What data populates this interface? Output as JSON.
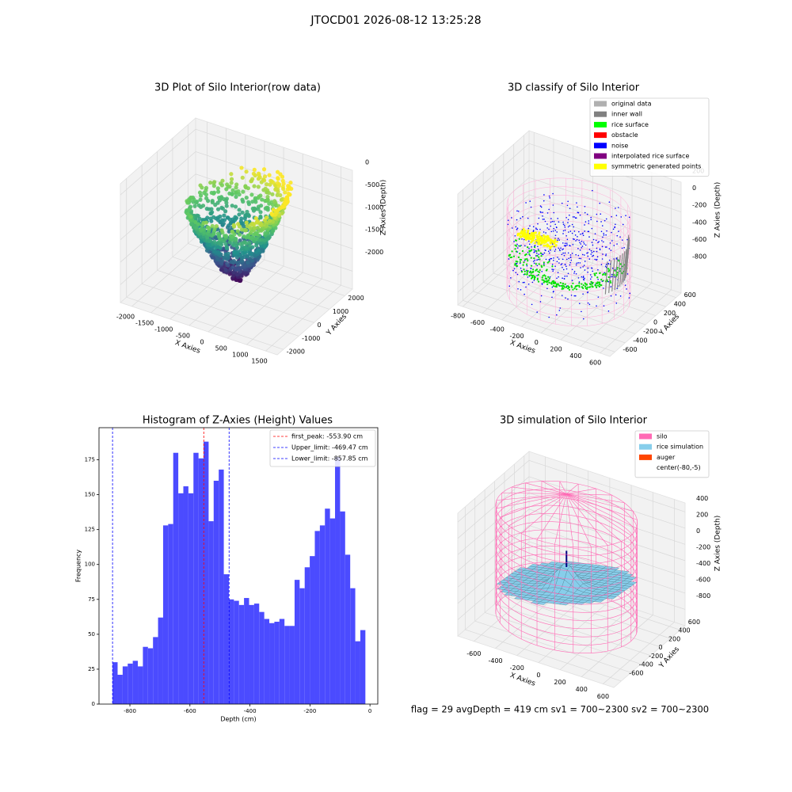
{
  "suptitle": "JTOCD01 2026-08-12 13:25:28",
  "footer": "flag = 29  avgDepth = 419 cm  sv1 = 700~2300  sv2 = 700~2300",
  "chart_data": [
    {
      "type": "scatter3d",
      "title": "3D Plot of Silo Interior(row data)",
      "x_label": "X Axies",
      "y_label": "Y Axies",
      "z_label": "Z Axies (Depth)",
      "xlim": [
        -2300,
        1800
      ],
      "ylim": [
        -2400,
        2500
      ],
      "zlim": [
        -2400,
        250
      ],
      "xticks": [
        -2000,
        -1500,
        -1000,
        -500,
        0,
        500,
        1000,
        1500
      ],
      "yticks": [
        -2000,
        -1000,
        0,
        1000,
        2000
      ],
      "zticks": [
        0,
        -500,
        -1000,
        -1500,
        -2000
      ]
    },
    {
      "type": "classify3d",
      "title": "3D classify of Silo Interior",
      "x_label": "X Axies",
      "y_label": "Y Axies",
      "z_label": "Z Axies (Depth)",
      "xlim": [
        -850,
        700
      ],
      "ylim": [
        -700,
        700
      ],
      "zlim": [
        -950,
        350
      ],
      "xticks": [
        -800,
        -600,
        -400,
        -200,
        0,
        200,
        400,
        600
      ],
      "yticks": [
        -600,
        -400,
        -200,
        0,
        200,
        400,
        600
      ],
      "zticks": [
        200,
        0,
        -200,
        -400,
        -600,
        -800
      ],
      "legend": [
        {
          "name": "original data",
          "color": "#b0b0b0"
        },
        {
          "name": "inner wall",
          "color": "#808080"
        },
        {
          "name": "rice surface",
          "color": "#00ff00"
        },
        {
          "name": "obstacle",
          "color": "#ff0000"
        },
        {
          "name": "noise",
          "color": "#0000ff"
        },
        {
          "name": "interpolated rice surface",
          "color": "#800080"
        },
        {
          "name": "symmetric generated points",
          "color": "#ffff00"
        }
      ]
    },
    {
      "type": "histogram",
      "title": "Histogram of Z-Axies (Height) Values",
      "x_label": "Depth (cm)",
      "y_label": "Frequency",
      "color": "#4b4bff",
      "bins": [
        -857.85,
        -841.0,
        -824.15,
        -807.3,
        -790.45,
        -773.6,
        -756.75,
        -739.9,
        -723.05,
        -706.2,
        -689.35,
        -672.5,
        -655.65,
        -638.8,
        -621.95,
        -605.1,
        -588.25,
        -571.4,
        -554.55,
        -537.7,
        -520.85,
        -504.0,
        -487.15,
        -470.3,
        -453.45,
        -436.6,
        -419.75,
        -402.9,
        -386.05,
        -369.2,
        -352.35,
        -335.5,
        -318.65,
        -301.8,
        -284.95,
        -268.1,
        -251.25,
        -234.4,
        -217.55,
        -200.7,
        -183.85,
        -167.0,
        -150.15,
        -133.3,
        -116.45,
        -99.6,
        -82.75,
        -65.9,
        -49.05,
        -32.2,
        -15.35
      ],
      "counts": [
        30,
        21,
        27,
        29,
        31,
        27,
        41,
        40,
        48,
        62,
        128,
        129,
        180,
        151,
        156,
        151,
        180,
        176,
        188,
        131,
        160,
        168,
        93,
        75,
        74,
        71,
        76,
        71,
        72,
        66,
        61,
        58,
        59,
        61,
        56,
        56,
        89,
        83,
        98,
        106,
        124,
        128,
        140,
        133,
        177,
        138,
        107,
        83,
        45,
        53
      ],
      "xlim": [
        -903,
        26
      ],
      "ylim": [
        0,
        198
      ],
      "xticks": [
        -800,
        -600,
        -400,
        -200,
        0
      ],
      "yticks": [
        0,
        25,
        50,
        75,
        100,
        125,
        150,
        175
      ],
      "lines": [
        {
          "value": -553.9,
          "label": "first_peak: -553.90 cm",
          "color": "#ff0000"
        },
        {
          "value": -469.47,
          "label": "Upper_limit: -469.47 cm",
          "color": "#0000ff"
        },
        {
          "value": -857.85,
          "label": "Lower_limit: -857.85 cm",
          "color": "#0000ff"
        }
      ]
    },
    {
      "type": "simulation3d",
      "title": "3D simulation of Silo Interior",
      "x_label": "X Axies",
      "y_label": "Y Axies",
      "z_label": "Z Axies (Depth)",
      "xlim": [
        -750,
        700
      ],
      "ylim": [
        -750,
        700
      ],
      "zlim": [
        -1000,
        510
      ],
      "xticks": [
        -600,
        -400,
        -200,
        0,
        200,
        400,
        600
      ],
      "yticks": [
        -600,
        -400,
        -200,
        0,
        200,
        400,
        600
      ],
      "zticks": [
        400,
        200,
        0,
        -200,
        -400,
        -600,
        -800
      ],
      "legend": [
        {
          "name": "silo",
          "color": "#ff69b4"
        },
        {
          "name": "rice simulation",
          "color": "#87ceeb"
        },
        {
          "name": "auger",
          "color": "#ff4500"
        },
        {
          "name": "center(-80,-5)",
          "color": "#ffffff"
        }
      ]
    }
  ]
}
